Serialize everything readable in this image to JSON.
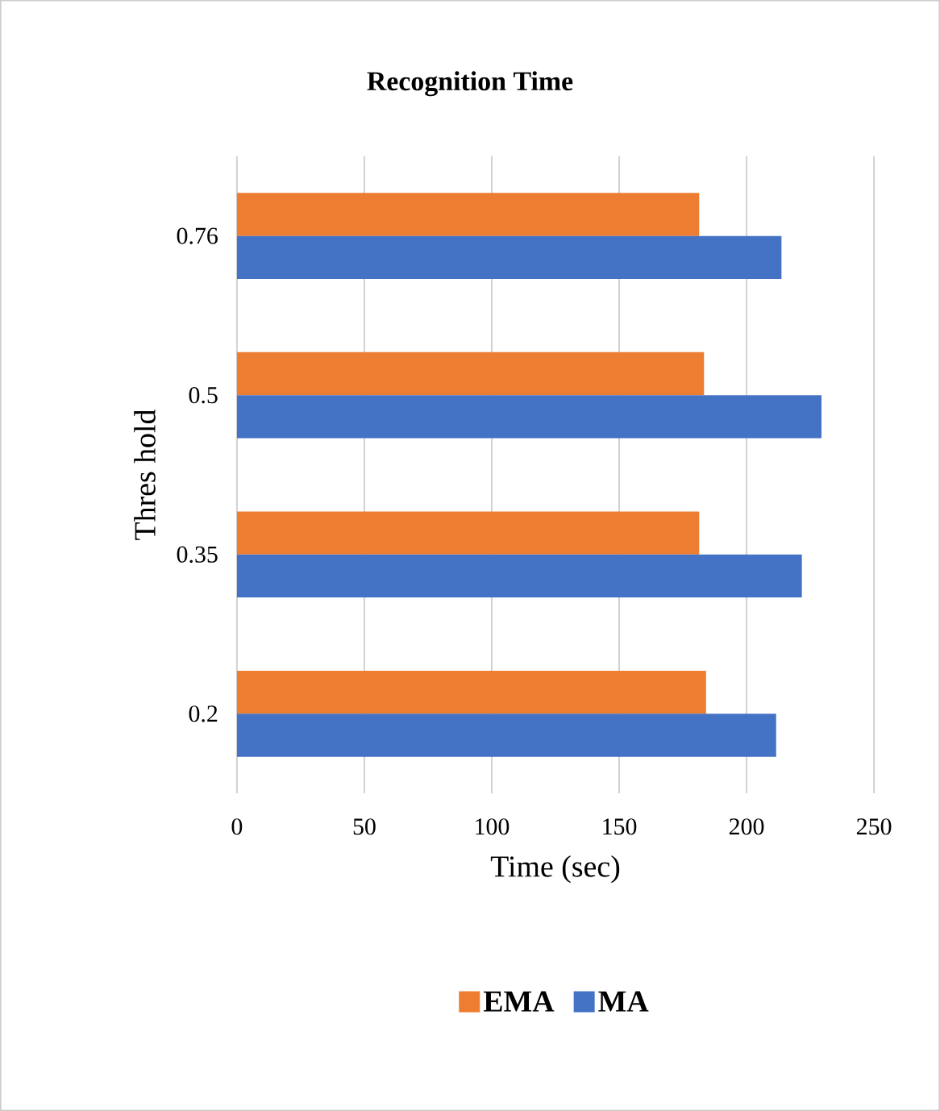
{
  "chart_data": {
    "type": "bar",
    "orientation": "horizontal",
    "title": "Recognition Time",
    "xlabel": "Time (sec)",
    "ylabel": "Thres hold",
    "categories": [
      "0.76",
      "0.5",
      "0.35",
      "0.2"
    ],
    "series": [
      {
        "name": "EMA",
        "color": "#ed7d31",
        "values": [
          181.4,
          183.3,
          181.4,
          184.1
        ]
      },
      {
        "name": "MA",
        "color": "#4472c4",
        "values": [
          213.7,
          229.4,
          221.7,
          211.6
        ]
      }
    ],
    "xlim": [
      0,
      250
    ],
    "xticks": [
      0,
      50,
      100,
      150,
      200,
      250
    ],
    "grid": "x",
    "legend": "bottom"
  }
}
